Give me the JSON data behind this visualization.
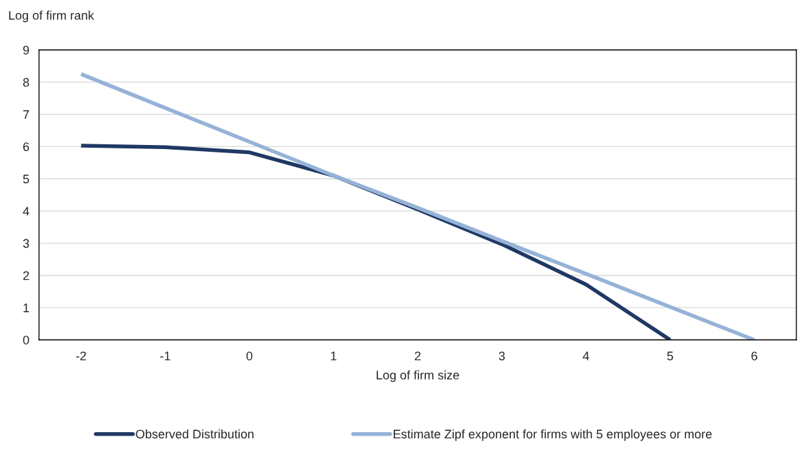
{
  "chart_data": {
    "type": "line",
    "ylabel": "Log of firm rank",
    "xlabel": "Log of firm size",
    "categories": [
      "-2",
      "-1",
      "0",
      "1",
      "2",
      "3",
      "4",
      "5",
      "6"
    ],
    "series": [
      {
        "name": "Observed Distribution",
        "color": "#1f3864",
        "values": [
          6.03,
          5.98,
          5.82,
          5.1,
          4.05,
          2.97,
          1.72,
          0,
          null
        ]
      },
      {
        "name": "Estimate Zipf exponent for firms with 5 employees or more",
        "color": "#95b3d7",
        "values": [
          8.25,
          7.2,
          6.15,
          5.1,
          4.1,
          3.07,
          2.05,
          1.02,
          0
        ]
      }
    ],
    "ylim": [
      0,
      9
    ],
    "yticks": [
      0,
      1,
      2,
      3,
      4,
      5,
      6,
      7,
      8,
      9
    ],
    "grid": "y",
    "legend": "bottom",
    "marker": "none",
    "line_style": "solid"
  }
}
